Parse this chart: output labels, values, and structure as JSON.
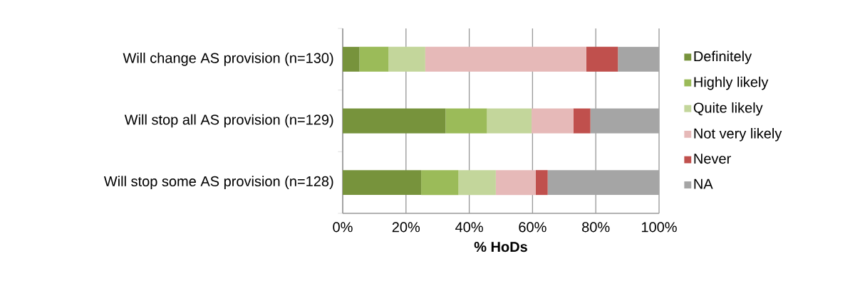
{
  "chart_data": {
    "type": "bar",
    "orientation": "horizontal",
    "stacked": true,
    "categories": [
      "Will change AS provision (n=130)",
      "Will stop all AS provision (n=129)",
      "Will stop some AS provision (n=128)"
    ],
    "series": [
      {
        "name": "Definitely",
        "color": "#77933c",
        "values": [
          5.3,
          32.5,
          24.8
        ]
      },
      {
        "name": "Highly likely",
        "color": "#9bbb59",
        "values": [
          9.2,
          13.1,
          11.8
        ]
      },
      {
        "name": "Quite likely",
        "color": "#c3d69b",
        "values": [
          11.6,
          14.1,
          11.8
        ]
      },
      {
        "name": "Not very likely",
        "color": "#e6b9b8",
        "values": [
          50.9,
          13.2,
          12.6
        ]
      },
      {
        "name": "Never",
        "color": "#c0504d",
        "values": [
          10.0,
          5.4,
          3.8
        ]
      },
      {
        "name": "NA",
        "color": "#a5a5a5",
        "values": [
          13.0,
          21.7,
          35.2
        ]
      }
    ],
    "xlabel": "% HoDs",
    "xlim": [
      0,
      100
    ],
    "xticks": [
      {
        "value": 0,
        "label": "0%"
      },
      {
        "value": 20,
        "label": "20%"
      },
      {
        "value": 40,
        "label": "40%"
      },
      {
        "value": 60,
        "label": "60%"
      },
      {
        "value": 80,
        "label": "80%"
      },
      {
        "value": 100,
        "label": "100%"
      }
    ],
    "grid": "x",
    "legend": "right"
  }
}
